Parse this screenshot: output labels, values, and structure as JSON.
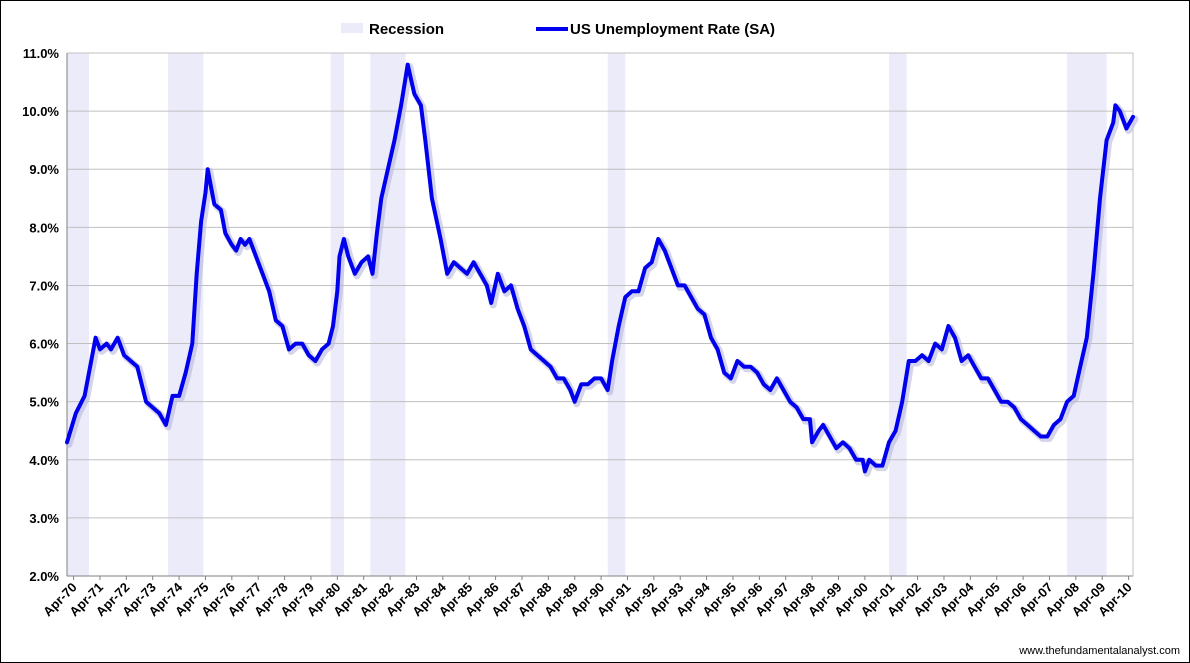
{
  "chart_data": {
    "type": "line",
    "title": "",
    "xlabel": "",
    "ylabel": "",
    "ylim": [
      2.0,
      11.0
    ],
    "y_ticks": [
      "2.0%",
      "3.0%",
      "4.0%",
      "5.0%",
      "6.0%",
      "7.0%",
      "8.0%",
      "9.0%",
      "10.0%",
      "11.0%"
    ],
    "x_ticks": [
      "Apr-70",
      "Apr-71",
      "Apr-72",
      "Apr-73",
      "Apr-74",
      "Apr-75",
      "Apr-76",
      "Apr-77",
      "Apr-78",
      "Apr-79",
      "Apr-80",
      "Apr-81",
      "Apr-82",
      "Apr-83",
      "Apr-84",
      "Apr-85",
      "Apr-86",
      "Apr-87",
      "Apr-88",
      "Apr-89",
      "Apr-90",
      "Apr-91",
      "Apr-92",
      "Apr-93",
      "Apr-94",
      "Apr-95",
      "Apr-96",
      "Apr-97",
      "Apr-98",
      "Apr-99",
      "Apr-00",
      "Apr-01",
      "Apr-02",
      "Apr-03",
      "Apr-04",
      "Apr-05",
      "Apr-06",
      "Apr-07",
      "Apr-08",
      "Apr-09",
      "Apr-10"
    ],
    "x_range": [
      "1970-01",
      "2010-06"
    ],
    "grid": "horizontal",
    "legend_position": "top-center",
    "legend": {
      "recession_label": "Recession",
      "series_label": "US Unemployment  Rate (SA)"
    },
    "colors": {
      "series": "#0000ee",
      "recession": "#ebebfa",
      "grid": "#c0c0c0"
    },
    "recessions": [
      {
        "start": "1970-01",
        "end": "1970-11"
      },
      {
        "start": "1973-11",
        "end": "1975-03"
      },
      {
        "start": "1980-01",
        "end": "1980-07"
      },
      {
        "start": "1981-07",
        "end": "1982-11"
      },
      {
        "start": "1990-07",
        "end": "1991-03"
      },
      {
        "start": "2001-03",
        "end": "2001-11"
      },
      {
        "start": "2007-12",
        "end": "2009-06"
      }
    ],
    "series": [
      {
        "name": "US Unemployment  Rate (SA)",
        "points": [
          [
            "1970-01",
            4.3
          ],
          [
            "1970-05",
            4.8
          ],
          [
            "1970-09",
            5.1
          ],
          [
            "1970-11",
            5.5
          ],
          [
            "1971-02",
            6.1
          ],
          [
            "1971-04",
            5.9
          ],
          [
            "1971-07",
            6.0
          ],
          [
            "1971-09",
            5.9
          ],
          [
            "1971-12",
            6.1
          ],
          [
            "1972-03",
            5.8
          ],
          [
            "1972-06",
            5.7
          ],
          [
            "1972-09",
            5.6
          ],
          [
            "1972-11",
            5.3
          ],
          [
            "1973-01",
            5.0
          ],
          [
            "1973-04",
            4.9
          ],
          [
            "1973-07",
            4.8
          ],
          [
            "1973-10",
            4.6
          ],
          [
            "1974-01",
            5.1
          ],
          [
            "1974-04",
            5.1
          ],
          [
            "1974-07",
            5.5
          ],
          [
            "1974-10",
            6.0
          ],
          [
            "1974-12",
            7.2
          ],
          [
            "1975-02",
            8.1
          ],
          [
            "1975-04",
            8.6
          ],
          [
            "1975-05",
            9.0
          ],
          [
            "1975-08",
            8.4
          ],
          [
            "1975-11",
            8.3
          ],
          [
            "1976-01",
            7.9
          ],
          [
            "1976-04",
            7.7
          ],
          [
            "1976-06",
            7.6
          ],
          [
            "1976-08",
            7.8
          ],
          [
            "1976-10",
            7.7
          ],
          [
            "1976-12",
            7.8
          ],
          [
            "1977-03",
            7.5
          ],
          [
            "1977-06",
            7.2
          ],
          [
            "1977-09",
            6.9
          ],
          [
            "1977-12",
            6.4
          ],
          [
            "1978-03",
            6.3
          ],
          [
            "1978-06",
            5.9
          ],
          [
            "1978-09",
            6.0
          ],
          [
            "1978-12",
            6.0
          ],
          [
            "1979-03",
            5.8
          ],
          [
            "1979-06",
            5.7
          ],
          [
            "1979-09",
            5.9
          ],
          [
            "1979-12",
            6.0
          ],
          [
            "1980-02",
            6.3
          ],
          [
            "1980-04",
            6.9
          ],
          [
            "1980-05",
            7.5
          ],
          [
            "1980-07",
            7.8
          ],
          [
            "1980-09",
            7.5
          ],
          [
            "1980-12",
            7.2
          ],
          [
            "1981-03",
            7.4
          ],
          [
            "1981-06",
            7.5
          ],
          [
            "1981-08",
            7.2
          ],
          [
            "1981-10",
            7.9
          ],
          [
            "1981-12",
            8.5
          ],
          [
            "1982-03",
            9.0
          ],
          [
            "1982-06",
            9.5
          ],
          [
            "1982-09",
            10.1
          ],
          [
            "1982-12",
            10.8
          ],
          [
            "1983-03",
            10.3
          ],
          [
            "1983-06",
            10.1
          ],
          [
            "1983-08",
            9.5
          ],
          [
            "1983-11",
            8.5
          ],
          [
            "1984-03",
            7.8
          ],
          [
            "1984-06",
            7.2
          ],
          [
            "1984-09",
            7.4
          ],
          [
            "1984-12",
            7.3
          ],
          [
            "1985-03",
            7.2
          ],
          [
            "1985-06",
            7.4
          ],
          [
            "1985-09",
            7.2
          ],
          [
            "1985-12",
            7.0
          ],
          [
            "1986-02",
            6.7
          ],
          [
            "1986-05",
            7.2
          ],
          [
            "1986-08",
            6.9
          ],
          [
            "1986-11",
            7.0
          ],
          [
            "1987-02",
            6.6
          ],
          [
            "1987-05",
            6.3
          ],
          [
            "1987-08",
            5.9
          ],
          [
            "1987-11",
            5.8
          ],
          [
            "1988-02",
            5.7
          ],
          [
            "1988-05",
            5.6
          ],
          [
            "1988-08",
            5.4
          ],
          [
            "1988-11",
            5.4
          ],
          [
            "1989-02",
            5.2
          ],
          [
            "1989-04",
            5.0
          ],
          [
            "1989-07",
            5.3
          ],
          [
            "1989-10",
            5.3
          ],
          [
            "1990-01",
            5.4
          ],
          [
            "1990-04",
            5.4
          ],
          [
            "1990-07",
            5.2
          ],
          [
            "1990-09",
            5.7
          ],
          [
            "1990-12",
            6.3
          ],
          [
            "1991-03",
            6.8
          ],
          [
            "1991-06",
            6.9
          ],
          [
            "1991-09",
            6.9
          ],
          [
            "1991-12",
            7.3
          ],
          [
            "1992-03",
            7.4
          ],
          [
            "1992-06",
            7.8
          ],
          [
            "1992-09",
            7.6
          ],
          [
            "1992-12",
            7.3
          ],
          [
            "1993-03",
            7.0
          ],
          [
            "1993-06",
            7.0
          ],
          [
            "1993-09",
            6.8
          ],
          [
            "1993-12",
            6.6
          ],
          [
            "1994-03",
            6.5
          ],
          [
            "1994-06",
            6.1
          ],
          [
            "1994-09",
            5.9
          ],
          [
            "1994-12",
            5.5
          ],
          [
            "1995-03",
            5.4
          ],
          [
            "1995-06",
            5.7
          ],
          [
            "1995-09",
            5.6
          ],
          [
            "1995-12",
            5.6
          ],
          [
            "1996-03",
            5.5
          ],
          [
            "1996-06",
            5.3
          ],
          [
            "1996-09",
            5.2
          ],
          [
            "1996-12",
            5.4
          ],
          [
            "1997-03",
            5.2
          ],
          [
            "1997-06",
            5.0
          ],
          [
            "1997-09",
            4.9
          ],
          [
            "1997-12",
            4.7
          ],
          [
            "1998-03",
            4.7
          ],
          [
            "1998-04",
            4.3
          ],
          [
            "1998-07",
            4.5
          ],
          [
            "1998-09",
            4.6
          ],
          [
            "1998-12",
            4.4
          ],
          [
            "1999-03",
            4.2
          ],
          [
            "1999-06",
            4.3
          ],
          [
            "1999-09",
            4.2
          ],
          [
            "1999-12",
            4.0
          ],
          [
            "2000-03",
            4.0
          ],
          [
            "2000-04",
            3.8
          ],
          [
            "2000-06",
            4.0
          ],
          [
            "2000-09",
            3.9
          ],
          [
            "2000-12",
            3.9
          ],
          [
            "2001-03",
            4.3
          ],
          [
            "2001-06",
            4.5
          ],
          [
            "2001-09",
            5.0
          ],
          [
            "2001-12",
            5.7
          ],
          [
            "2002-03",
            5.7
          ],
          [
            "2002-06",
            5.8
          ],
          [
            "2002-09",
            5.7
          ],
          [
            "2002-12",
            6.0
          ],
          [
            "2003-03",
            5.9
          ],
          [
            "2003-06",
            6.3
          ],
          [
            "2003-09",
            6.1
          ],
          [
            "2003-12",
            5.7
          ],
          [
            "2004-03",
            5.8
          ],
          [
            "2004-06",
            5.6
          ],
          [
            "2004-09",
            5.4
          ],
          [
            "2004-12",
            5.4
          ],
          [
            "2005-03",
            5.2
          ],
          [
            "2005-06",
            5.0
          ],
          [
            "2005-09",
            5.0
          ],
          [
            "2005-12",
            4.9
          ],
          [
            "2006-03",
            4.7
          ],
          [
            "2006-06",
            4.6
          ],
          [
            "2006-09",
            4.5
          ],
          [
            "2006-12",
            4.4
          ],
          [
            "2007-03",
            4.4
          ],
          [
            "2007-06",
            4.6
          ],
          [
            "2007-09",
            4.7
          ],
          [
            "2007-12",
            5.0
          ],
          [
            "2008-03",
            5.1
          ],
          [
            "2008-06",
            5.6
          ],
          [
            "2008-09",
            6.1
          ],
          [
            "2008-12",
            7.2
          ],
          [
            "2009-03",
            8.5
          ],
          [
            "2009-06",
            9.5
          ],
          [
            "2009-09",
            9.8
          ],
          [
            "2009-10",
            10.1
          ],
          [
            "2009-12",
            10.0
          ],
          [
            "2010-03",
            9.7
          ],
          [
            "2010-06",
            9.9
          ]
        ]
      }
    ]
  },
  "footer": {
    "credit": "www.thefundamentalanalyst.com"
  }
}
